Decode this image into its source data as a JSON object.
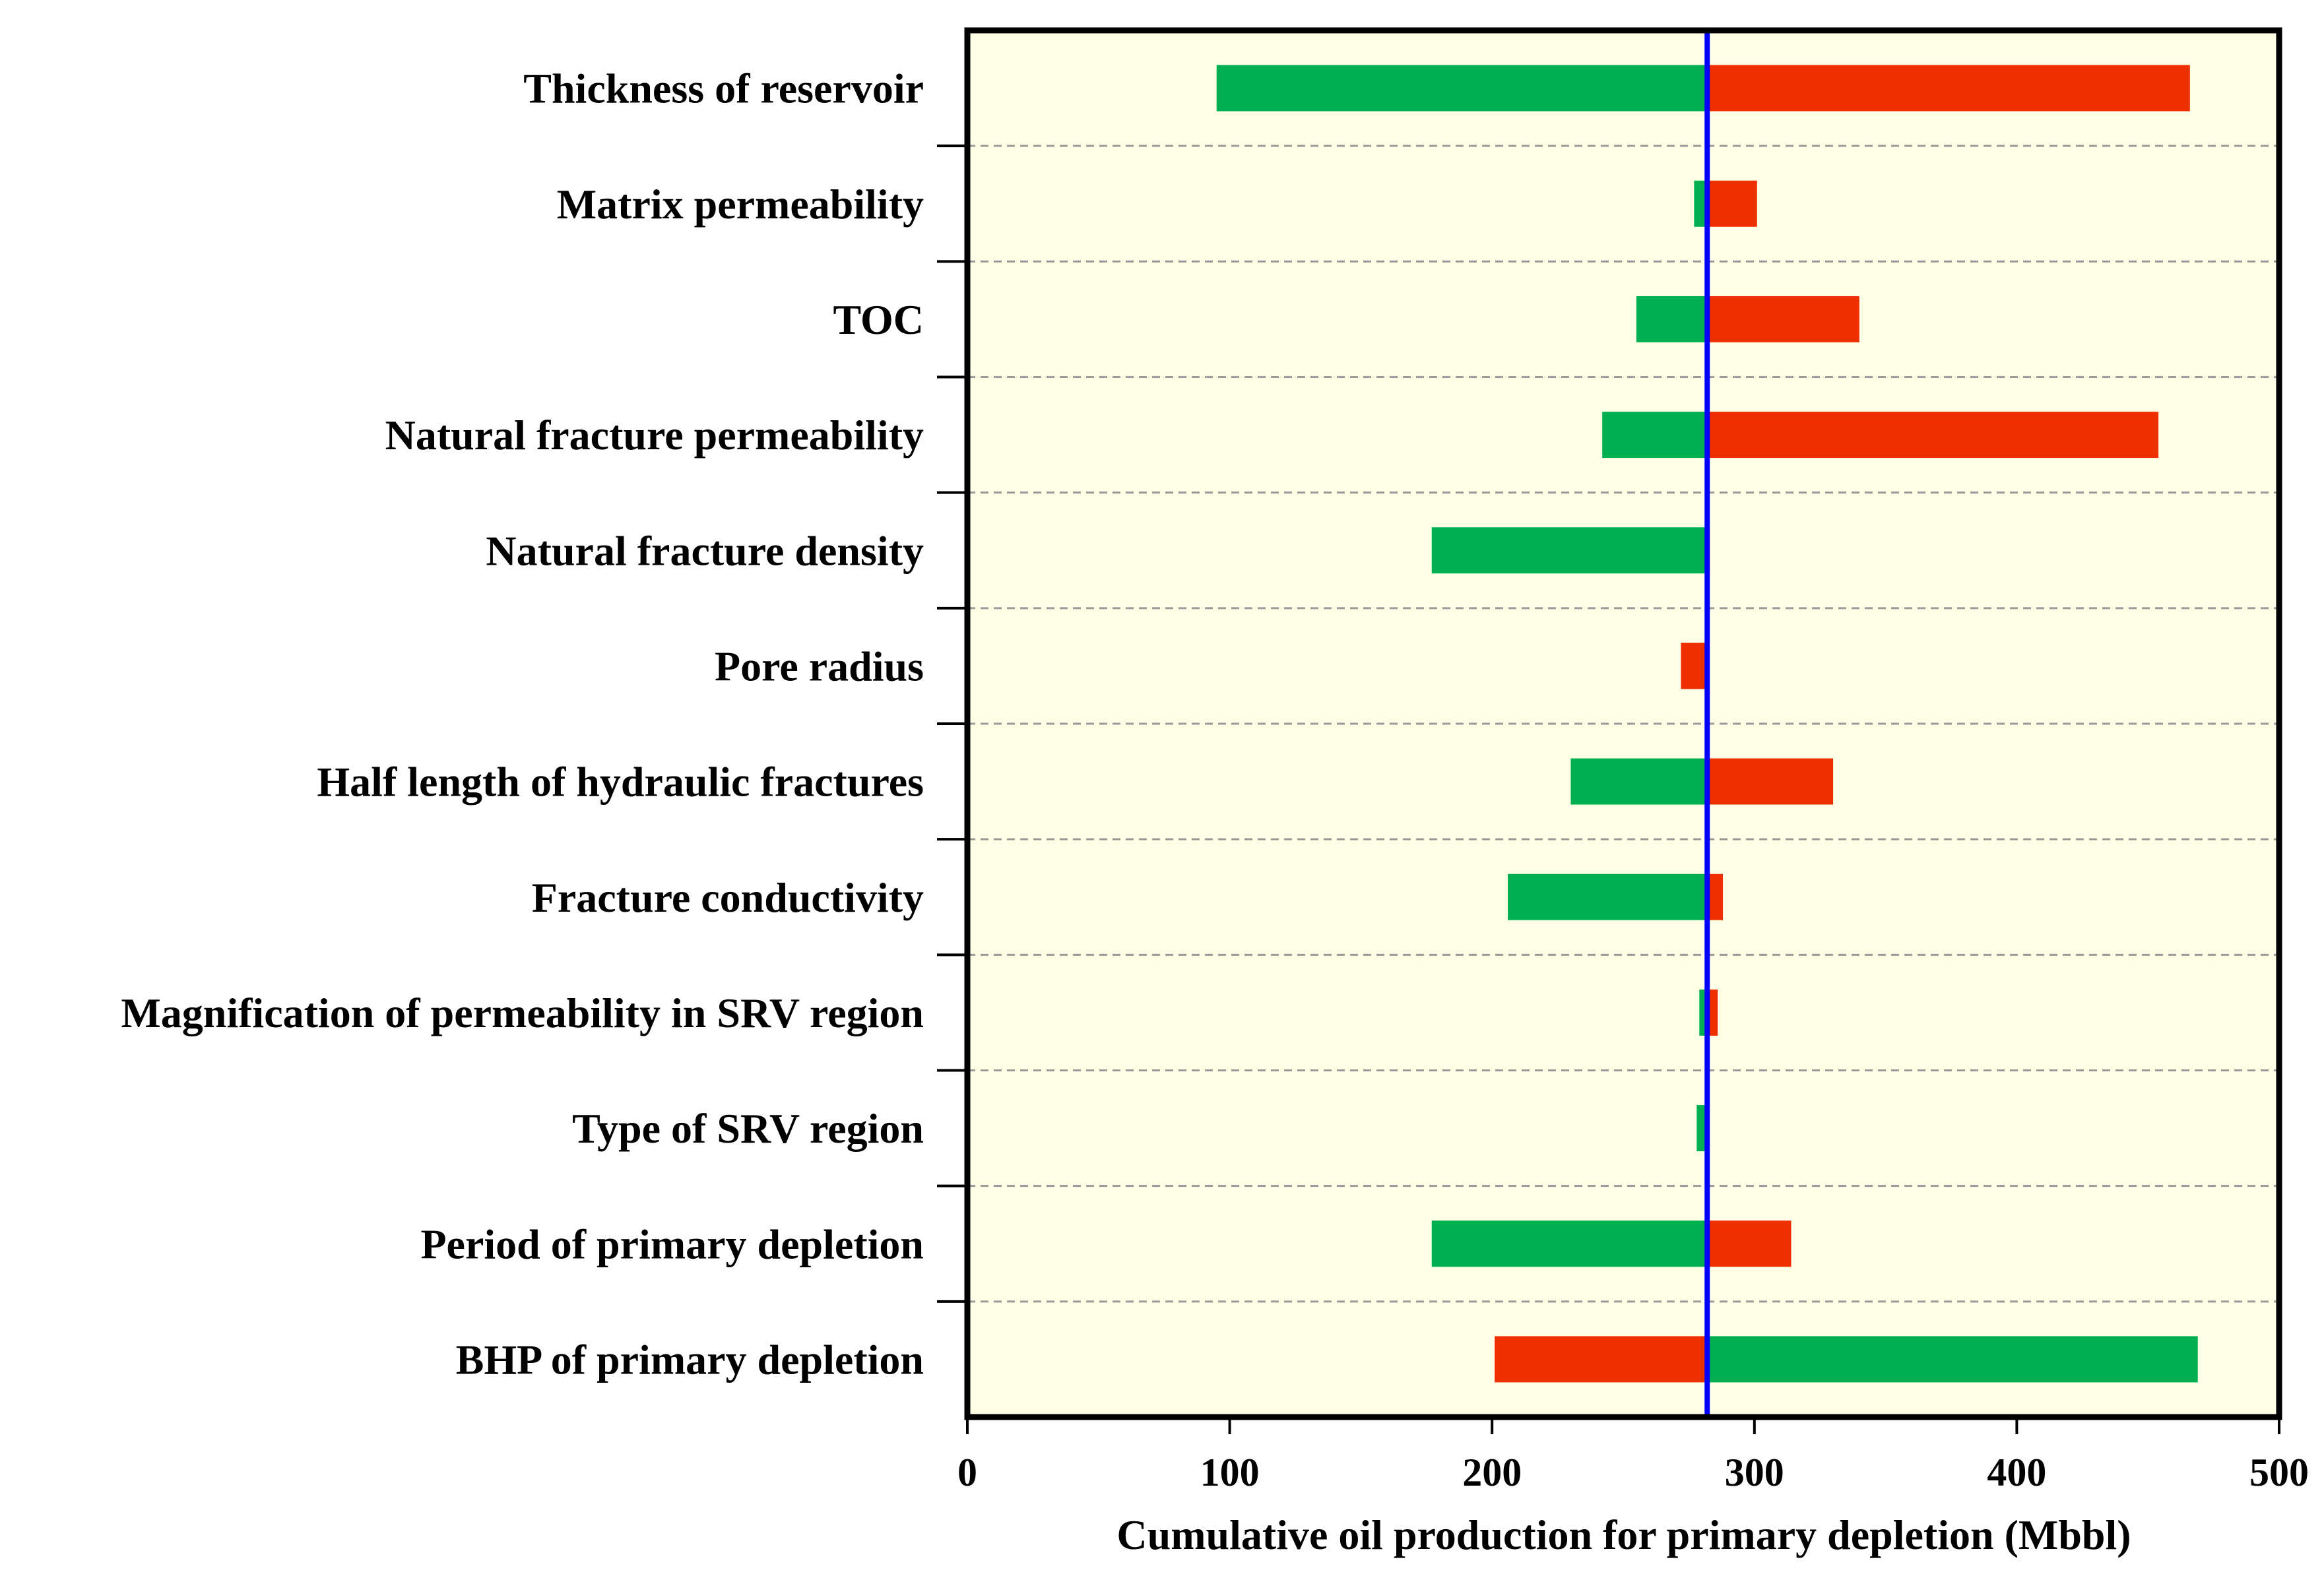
{
  "chart_data": {
    "type": "bar",
    "orientation": "horizontal",
    "subtype": "tornado",
    "title": "",
    "xlabel": "Cumulative oil production for primary depletion (Mbbl)",
    "ylabel": "",
    "xlim": [
      0,
      500
    ],
    "xticks": [
      0,
      100,
      200,
      300,
      400,
      500
    ],
    "base_value": 282,
    "categories": [
      "Thickness of reservoir",
      "Matrix permeability",
      "TOC",
      "Natural fracture permeability",
      "Natural fracture density",
      "Pore radius",
      "Half length of hydraulic fractures",
      "Fracture conductivity",
      "Magnification of permeability in SRV region",
      "Type of SRV region",
      "Period of primary depletion",
      "BHP of primary depletion"
    ],
    "series": [
      {
        "name": "green",
        "color": "#00b050",
        "values": [
          95,
          277,
          255,
          242,
          177,
          282,
          230,
          206,
          279,
          278,
          177,
          469
        ]
      },
      {
        "name": "red",
        "color": "#ee3000",
        "values": [
          466,
          301,
          340,
          454,
          283,
          272,
          330,
          288,
          286,
          282,
          314,
          201
        ]
      }
    ],
    "background_color": "#ffffe6",
    "base_line_color": "#0000ff",
    "grid": "horizontal dashed separators"
  }
}
